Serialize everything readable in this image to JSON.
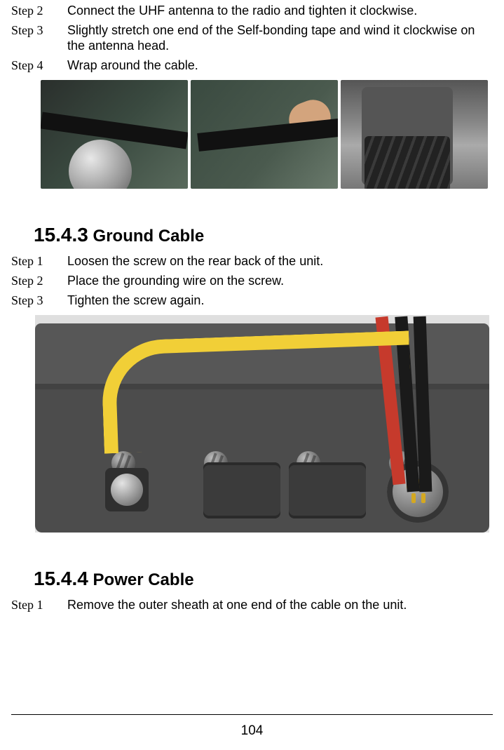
{
  "antenna_steps": {
    "s2": {
      "label": "Step 2",
      "text": "Connect the UHF antenna to the radio and tighten it clockwise."
    },
    "s3": {
      "label": "Step 3",
      "text": "Slightly stretch one end of the Self-bonding tape and wind it clockwise on the antenna head."
    },
    "s4": {
      "label": "Step 4",
      "text": "Wrap around the cable."
    }
  },
  "section_ground": {
    "number": "15.4.3",
    "title": "Ground Cable",
    "steps": {
      "s1": {
        "label": "Step 1",
        "text": "Loosen the screw on the rear back of the unit."
      },
      "s2": {
        "label": "Step 2",
        "text": "Place the grounding wire on the screw."
      },
      "s3": {
        "label": "Step 3",
        "text": "Tighten the screw again."
      }
    }
  },
  "section_power": {
    "number": "15.4.4",
    "title": "Power Cable",
    "steps": {
      "s1": {
        "label": "Step 1",
        "text": "Remove the outer sheath at one end of the cable on the unit."
      }
    }
  },
  "photos": {
    "triple_desc": "Three photos showing wrapping self-bonding tape around UHF antenna connector",
    "background_green": "#3a4a40",
    "tape_color": "#111111",
    "knob_silver": "#c0c0c0"
  },
  "ground_diagram": {
    "desc": "3D render of device rear panel with yellow ground wire, red and black power wires, screw terminals and circular multi-pin connector",
    "bg": "#dfdfdf",
    "body_color": "#4c4c4c",
    "yellow_wire": "#f1cf37",
    "red_wire": "#c63a2c",
    "black_wire": "#1a1a1a",
    "pin_color": "#d4a821"
  },
  "page_number": "104"
}
